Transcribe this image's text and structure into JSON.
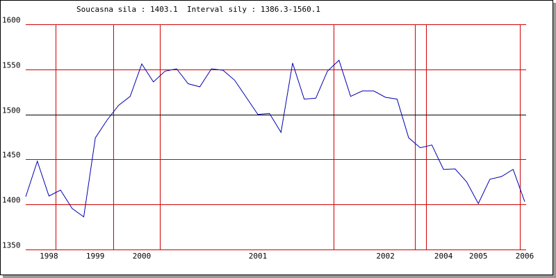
{
  "chart_data": {
    "type": "line",
    "title": "Soucasna sila : 1403.1  Interval sily : 1386.3-1560.1",
    "categories": [
      null,
      null,
      "1998",
      null,
      null,
      null,
      "1999",
      null,
      null,
      null,
      "2000",
      null,
      null,
      null,
      null,
      null,
      null,
      null,
      null,
      null,
      "2001",
      null,
      null,
      null,
      null,
      null,
      null,
      null,
      null,
      null,
      null,
      "2002",
      null,
      null,
      null,
      null,
      "2004",
      null,
      null,
      "2005",
      null,
      null,
      null,
      "2006"
    ],
    "series": [
      {
        "name": "sila",
        "color": "#0000b0",
        "values": [
          1408.6,
          1448,
          1409.4,
          1416,
          1395.5,
          1386.3,
          1474,
          1493.5,
          1510,
          1520,
          1556,
          1536,
          1548,
          1550.6,
          1534,
          1530.6,
          1550.6,
          1549,
          1538,
          1519,
          1500,
          1501,
          1480,
          1557,
          1517,
          1518,
          1548,
          1560.1,
          1520,
          1526,
          1526,
          1519,
          1517,
          1474,
          1463,
          1466,
          1439,
          1439.5,
          1425,
          1401,
          1428,
          1431,
          1439,
          1403.1
        ]
      }
    ],
    "ylim": [
      1350,
      1600
    ],
    "yticks": [
      1350,
      1400,
      1450,
      1500,
      1550,
      1600
    ],
    "grid": true,
    "grid_color": "#cc0000",
    "reference_line": {
      "value": 1500,
      "color": "#000000"
    }
  }
}
